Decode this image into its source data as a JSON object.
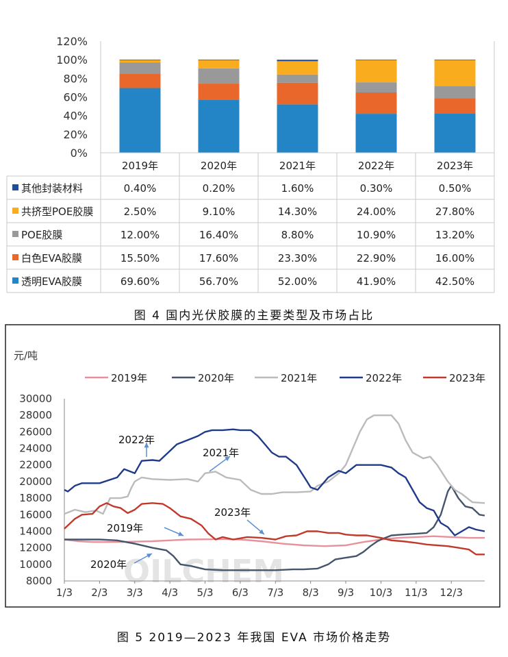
{
  "chart_data": [
    {
      "type": "bar",
      "stacked": true,
      "caption": "图 4  国内光伏胶膜的主要类型及市场占比",
      "categories": [
        "2019年",
        "2020年",
        "2021年",
        "2022年",
        "2023年"
      ],
      "y_ticks": [
        "0%",
        "20%",
        "40%",
        "60%",
        "80%",
        "100%",
        "120%"
      ],
      "ylim": [
        0,
        120
      ],
      "series": [
        {
          "name": "透明EVA胶膜",
          "color": "#2385c6",
          "values": [
            69.6,
            56.7,
            52.0,
            41.9,
            42.5
          ],
          "labels": [
            "69.60%",
            "56.70%",
            "52.00%",
            "41.90%",
            "42.50%"
          ]
        },
        {
          "name": "白色EVA胶膜",
          "color": "#e9672a",
          "values": [
            15.5,
            17.6,
            23.3,
            22.9,
            16.0
          ],
          "labels": [
            "15.50%",
            "17.60%",
            "23.30%",
            "22.90%",
            "16.00%"
          ]
        },
        {
          "name": "POE胶膜",
          "color": "#999999",
          "values": [
            12.0,
            16.4,
            8.8,
            10.9,
            13.2
          ],
          "labels": [
            "12.00%",
            "16.40%",
            "8.80%",
            "10.90%",
            "13.20%"
          ]
        },
        {
          "name": "共挤型POE胶膜",
          "color": "#f9ad1e",
          "values": [
            2.5,
            9.1,
            14.3,
            24.0,
            27.8
          ],
          "labels": [
            "2.50%",
            "9.10%",
            "14.30%",
            "24.00%",
            "27.80%"
          ]
        },
        {
          "name": "其他封装材料",
          "color": "#1f4e96",
          "values": [
            0.4,
            0.2,
            1.6,
            0.3,
            0.5
          ],
          "labels": [
            "0.40%",
            "0.20%",
            "1.60%",
            "0.30%",
            "0.50%"
          ]
        }
      ],
      "table_row_order": [
        "其他封装材料",
        "共挤型POE胶膜",
        "POE胶膜",
        "白色EVA胶膜",
        "透明EVA胶膜"
      ]
    },
    {
      "type": "line",
      "caption": "图 5  2019—2023 年我国 EVA 市场价格走势",
      "ylabel": "元/吨",
      "ylim": [
        8000,
        30000
      ],
      "y_ticks": [
        "8000",
        "10000",
        "12000",
        "14000",
        "16000",
        "18000",
        "20000",
        "22000",
        "24000",
        "26000",
        "28000",
        "30000"
      ],
      "x_ticks": [
        "1/3",
        "2/3",
        "3/3",
        "4/3",
        "5/3",
        "6/3",
        "7/3",
        "8/3",
        "9/3",
        "10/3",
        "11/3",
        "12/3"
      ],
      "legend_position": "top",
      "watermark": "OILCHEM",
      "annotations": [
        "2022年",
        "2021年",
        "2023年",
        "2019年",
        "2020年"
      ],
      "series": [
        {
          "name": "2019年",
          "color": "#e8909b",
          "points": [
            [
              0,
              13000
            ],
            [
              0.4,
              12800
            ],
            [
              0.8,
              12700
            ],
            [
              1.5,
              12700
            ],
            [
              2.5,
              12800
            ],
            [
              3.5,
              13000
            ],
            [
              4.5,
              13050
            ],
            [
              5.0,
              13000
            ],
            [
              5.6,
              12800
            ],
            [
              6.2,
              12500
            ],
            [
              6.8,
              12300
            ],
            [
              7.4,
              12200
            ],
            [
              8.0,
              12300
            ],
            [
              8.5,
              12700
            ],
            [
              9.0,
              13000
            ],
            [
              9.5,
              13200
            ],
            [
              10.0,
              13300
            ],
            [
              10.5,
              13400
            ],
            [
              11.0,
              13300
            ],
            [
              11.5,
              13200
            ],
            [
              11.95,
              13200
            ]
          ]
        },
        {
          "name": "2020年",
          "color": "#44546a",
          "points": [
            [
              0,
              13000
            ],
            [
              0.5,
              13000
            ],
            [
              1.0,
              13000
            ],
            [
              1.5,
              12900
            ],
            [
              2.0,
              12500
            ],
            [
              2.5,
              12000
            ],
            [
              2.9,
              11700
            ],
            [
              3.1,
              11000
            ],
            [
              3.3,
              10000
            ],
            [
              3.6,
              9800
            ],
            [
              4.0,
              9400
            ],
            [
              4.5,
              9300
            ],
            [
              5.0,
              9300
            ],
            [
              5.5,
              9300
            ],
            [
              6.0,
              9300
            ],
            [
              6.5,
              9400
            ],
            [
              6.8,
              9400
            ],
            [
              7.2,
              9500
            ],
            [
              7.5,
              10000
            ],
            [
              7.7,
              10600
            ],
            [
              8.0,
              10800
            ],
            [
              8.3,
              11000
            ],
            [
              8.5,
              11500
            ],
            [
              8.7,
              12200
            ],
            [
              8.9,
              12800
            ],
            [
              9.0,
              13000
            ],
            [
              9.3,
              13500
            ],
            [
              9.6,
              13600
            ],
            [
              10.0,
              13700
            ],
            [
              10.3,
              13800
            ],
            [
              10.5,
              14500
            ],
            [
              10.7,
              16000
            ],
            [
              10.9,
              18800
            ],
            [
              11.0,
              19500
            ],
            [
              11.2,
              18000
            ],
            [
              11.4,
              17000
            ],
            [
              11.6,
              16800
            ],
            [
              11.8,
              16000
            ],
            [
              11.95,
              15900
            ]
          ]
        },
        {
          "name": "2021年",
          "color": "#bbbbbb",
          "points": [
            [
              0,
              16100
            ],
            [
              0.3,
              16600
            ],
            [
              0.6,
              16300
            ],
            [
              0.9,
              16500
            ],
            [
              1.1,
              16100
            ],
            [
              1.3,
              18000
            ],
            [
              1.6,
              18000
            ],
            [
              1.8,
              18200
            ],
            [
              1.9,
              19200
            ],
            [
              2.0,
              20000
            ],
            [
              2.2,
              20500
            ],
            [
              2.5,
              20300
            ],
            [
              3.0,
              20200
            ],
            [
              3.5,
              20300
            ],
            [
              3.8,
              20000
            ],
            [
              4.0,
              21000
            ],
            [
              4.3,
              21200
            ],
            [
              4.6,
              20500
            ],
            [
              5.0,
              20200
            ],
            [
              5.3,
              19000
            ],
            [
              5.6,
              18500
            ],
            [
              5.9,
              18500
            ],
            [
              6.2,
              18700
            ],
            [
              6.6,
              18700
            ],
            [
              7.0,
              18800
            ],
            [
              7.2,
              19500
            ],
            [
              7.5,
              20000
            ],
            [
              7.8,
              21000
            ],
            [
              8.0,
              22000
            ],
            [
              8.2,
              24000
            ],
            [
              8.4,
              26000
            ],
            [
              8.6,
              27500
            ],
            [
              8.8,
              28000
            ],
            [
              9.0,
              28000
            ],
            [
              9.3,
              28000
            ],
            [
              9.5,
              27000
            ],
            [
              9.7,
              25000
            ],
            [
              9.9,
              23500
            ],
            [
              10.2,
              22800
            ],
            [
              10.4,
              23000
            ],
            [
              10.6,
              22000
            ],
            [
              10.9,
              20000
            ],
            [
              11.1,
              19000
            ],
            [
              11.3,
              18500
            ],
            [
              11.6,
              17500
            ],
            [
              11.95,
              17400
            ]
          ]
        },
        {
          "name": "2022年",
          "color": "#1f3a8a",
          "points": [
            [
              0,
              19000
            ],
            [
              0.1,
              18800
            ],
            [
              0.3,
              19500
            ],
            [
              0.5,
              19800
            ],
            [
              1.0,
              19800
            ],
            [
              1.5,
              20500
            ],
            [
              1.7,
              21500
            ],
            [
              2.0,
              21000
            ],
            [
              2.2,
              22500
            ],
            [
              2.5,
              22600
            ],
            [
              2.7,
              22500
            ],
            [
              3.0,
              23700
            ],
            [
              3.2,
              24500
            ],
            [
              3.5,
              25000
            ],
            [
              3.8,
              25500
            ],
            [
              4.0,
              26000
            ],
            [
              4.2,
              26200
            ],
            [
              4.5,
              26200
            ],
            [
              4.8,
              26300
            ],
            [
              5.0,
              26200
            ],
            [
              5.3,
              26200
            ],
            [
              5.5,
              25500
            ],
            [
              5.7,
              24500
            ],
            [
              5.9,
              23500
            ],
            [
              6.1,
              23000
            ],
            [
              6.3,
              23000
            ],
            [
              6.6,
              22000
            ],
            [
              6.9,
              20000
            ],
            [
              7.0,
              19300
            ],
            [
              7.2,
              19000
            ],
            [
              7.5,
              20500
            ],
            [
              7.8,
              21300
            ],
            [
              8.0,
              21000
            ],
            [
              8.3,
              22000
            ],
            [
              8.6,
              22000
            ],
            [
              9.0,
              22000
            ],
            [
              9.3,
              21700
            ],
            [
              9.5,
              21000
            ],
            [
              9.7,
              20500
            ],
            [
              9.9,
              19000
            ],
            [
              10.1,
              17500
            ],
            [
              10.3,
              16800
            ],
            [
              10.5,
              16500
            ],
            [
              10.7,
              15000
            ],
            [
              10.9,
              14500
            ],
            [
              11.1,
              13500
            ],
            [
              11.3,
              14000
            ],
            [
              11.5,
              14500
            ],
            [
              11.7,
              14200
            ],
            [
              11.95,
              14000
            ]
          ]
        },
        {
          "name": "2023年",
          "color": "#c0392b",
          "points": [
            [
              0,
              14300
            ],
            [
              0.3,
              15500
            ],
            [
              0.5,
              16000
            ],
            [
              0.8,
              16100
            ],
            [
              1.0,
              17000
            ],
            [
              1.2,
              17400
            ],
            [
              1.4,
              17000
            ],
            [
              1.6,
              16800
            ],
            [
              1.8,
              16200
            ],
            [
              2.0,
              16600
            ],
            [
              2.2,
              17300
            ],
            [
              2.5,
              17400
            ],
            [
              2.8,
              17300
            ],
            [
              3.0,
              16800
            ],
            [
              3.3,
              15800
            ],
            [
              3.6,
              15500
            ],
            [
              3.9,
              14700
            ],
            [
              4.1,
              13700
            ],
            [
              4.3,
              13000
            ],
            [
              4.5,
              13300
            ],
            [
              4.8,
              13000
            ],
            [
              5.2,
              13300
            ],
            [
              5.6,
              13200
            ],
            [
              6.0,
              13000
            ],
            [
              6.3,
              13400
            ],
            [
              6.6,
              13500
            ],
            [
              6.9,
              14000
            ],
            [
              7.2,
              14000
            ],
            [
              7.5,
              13800
            ],
            [
              7.8,
              13800
            ],
            [
              8.0,
              13600
            ],
            [
              8.3,
              13500
            ],
            [
              8.6,
              13500
            ],
            [
              9.0,
              13200
            ],
            [
              9.3,
              12900
            ],
            [
              9.6,
              12800
            ],
            [
              10.0,
              12600
            ],
            [
              10.3,
              12400
            ],
            [
              10.6,
              12300
            ],
            [
              10.9,
              12200
            ],
            [
              11.2,
              12000
            ],
            [
              11.5,
              11800
            ],
            [
              11.7,
              11200
            ],
            [
              11.95,
              11200
            ]
          ]
        }
      ]
    }
  ]
}
